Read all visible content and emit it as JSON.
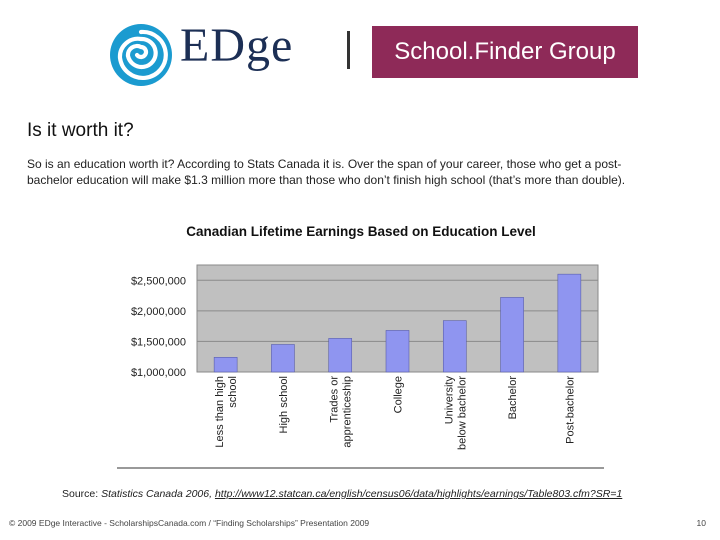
{
  "header": {
    "logo_text": "EDge",
    "group_label": "School.Finder Group"
  },
  "slide": {
    "heading": "Is it worth it?",
    "intro": "So is an education worth it? According to Stats Canada it is. Over the span of your career, those who get a post-bachelor education will make $1.3 million more than those who don’t finish high school (that’s more than double).",
    "source_prefix": "Source: ",
    "source_publication": "Statistics Canada 2006, ",
    "source_url": "http://www12.statcan.ca/english/census06/data/highlights/earnings/Table803.cfm?SR=1"
  },
  "footer": {
    "copyright": "© 2009 EDge Interactive - ScholarshipsCanada.com / “Finding Scholarships” Presentation 2009",
    "page_number": "10"
  },
  "colors": {
    "logo_swirl": "#1b9bd0",
    "logo_text": "#1c2f55",
    "group_box": "#8e2a58",
    "bar_fill": "#8f95f0",
    "plot_bg": "#c0c0c0"
  },
  "chart_data": {
    "type": "bar",
    "title": "Canadian Lifetime Earnings Based on Education Level",
    "categories": [
      "Less than high school",
      "High school",
      "Trades or apprenticeship",
      "College",
      "University below bachelor",
      "Bachelor",
      "Post-bachelor"
    ],
    "category_lines": [
      [
        "Less than high",
        "school"
      ],
      [
        "High school"
      ],
      [
        "Trades or",
        "apprenticeship"
      ],
      [
        "College"
      ],
      [
        "University",
        "below bachelor"
      ],
      [
        "Bachelor"
      ],
      [
        "Post-bachelor"
      ]
    ],
    "values": [
      1240000,
      1450000,
      1550000,
      1680000,
      1840000,
      2220000,
      2600000
    ],
    "ylim": [
      1000000,
      2750000
    ],
    "yticks": [
      1000000,
      1500000,
      2000000,
      2500000
    ],
    "ytick_labels": [
      "$1,000,000",
      "$1,500,000",
      "$2,000,000",
      "$2,500,000"
    ],
    "xlabel": "",
    "ylabel": "",
    "grid": true,
    "legend": "none"
  }
}
